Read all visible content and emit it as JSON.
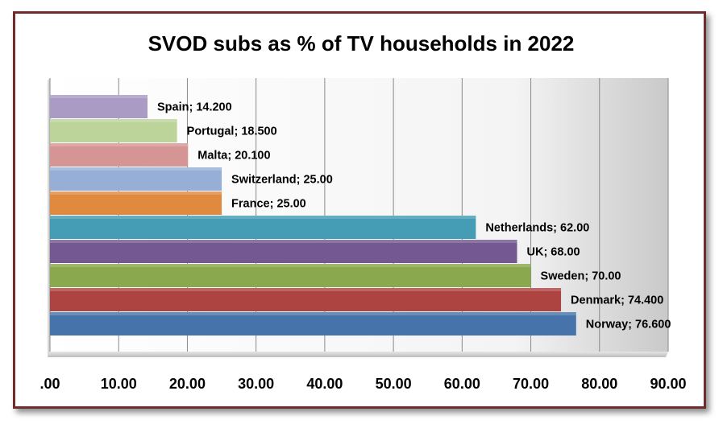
{
  "chart_data": {
    "type": "bar",
    "orientation": "horizontal",
    "title": "SVOD subs as % of TV households in 2022",
    "xlabel": "",
    "ylabel": "",
    "xlim": [
      0,
      90
    ],
    "x_ticks": [
      ".00",
      "10.00",
      "20.00",
      "30.00",
      "40.00",
      "50.00",
      "60.00",
      "70.00",
      "80.00",
      "90.00"
    ],
    "grid": true,
    "legend": "none",
    "categories": [
      "Spain",
      "Portugal",
      "Malta",
      "Switzerland",
      "France",
      "Netherlands",
      "UK",
      "Sweden",
      "Denmark",
      "Norway"
    ],
    "values": [
      14.2,
      18.5,
      20.1,
      25.0,
      25.0,
      62.0,
      68.0,
      70.0,
      74.4,
      76.6
    ],
    "data_labels": [
      "Spain; 14.200",
      "Portugal; 18.500",
      "Malta; 20.100",
      "Switzerland; 25.00",
      "France; 25.00",
      "Netherlands; 62.00",
      "UK; 68.00",
      "Sweden; 70.00",
      "Denmark; 74.400",
      "Norway; 76.600"
    ],
    "colors": [
      "#a99bc4",
      "#bcd49a",
      "#d59595",
      "#97afd6",
      "#e08a40",
      "#449db4",
      "#735891",
      "#8aa84d",
      "#ad4442",
      "#4674aa"
    ]
  }
}
